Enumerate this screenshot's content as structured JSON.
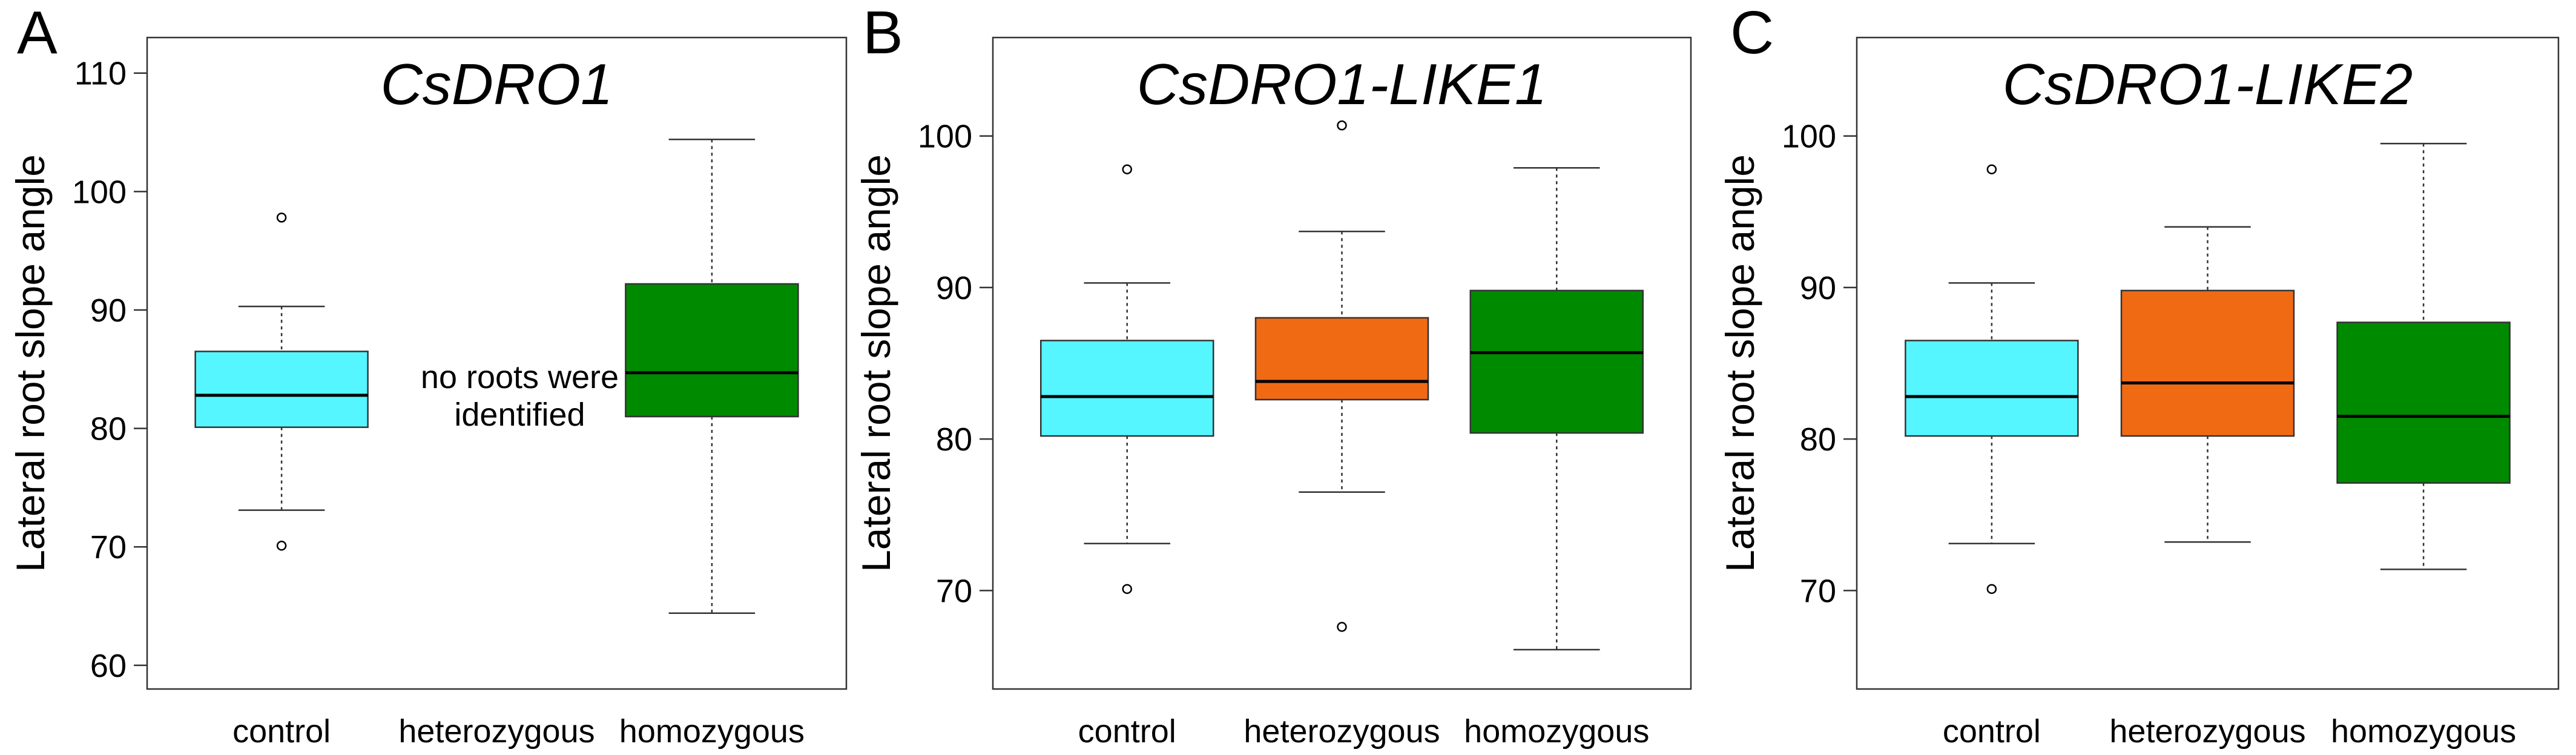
{
  "chart_data": [
    {
      "type": "box",
      "panel_label": "A",
      "title": "CsDRO1",
      "ylabel": "Lateral root slope angle",
      "xlabel": "",
      "ylim": [
        58,
        113
      ],
      "yticks": [
        60,
        70,
        80,
        90,
        100,
        110
      ],
      "grid": false,
      "categories": [
        "control",
        "heterozygous",
        "homozygous"
      ],
      "colors": [
        "#55f6ff",
        null,
        "#008a00"
      ],
      "boxes": [
        {
          "min": 73.1,
          "q1": 80.1,
          "median": 82.8,
          "q3": 86.5,
          "max": 90.3,
          "outliers": [
            97.8,
            70.1
          ]
        },
        null,
        {
          "min": 64.4,
          "q1": 81.0,
          "median": 84.7,
          "q3": 92.2,
          "max": 104.4,
          "outliers": []
        }
      ],
      "annotations": [
        {
          "category": "heterozygous",
          "lines": [
            "no roots were",
            "identified"
          ]
        }
      ]
    },
    {
      "type": "box",
      "panel_label": "B",
      "title": "CsDRO1-LIKE1",
      "ylabel": "Lateral root slope angle",
      "xlabel": "",
      "ylim": [
        63.5,
        106.5
      ],
      "yticks": [
        70,
        80,
        90,
        100
      ],
      "grid": false,
      "categories": [
        "control",
        "heterozygous",
        "homozygous"
      ],
      "colors": [
        "#55f6ff",
        "#f06a14",
        "#008a00"
      ],
      "boxes": [
        {
          "min": 73.1,
          "q1": 80.2,
          "median": 82.8,
          "q3": 86.5,
          "max": 90.3,
          "outliers": [
            97.8,
            70.1
          ]
        },
        {
          "min": 76.5,
          "q1": 82.6,
          "median": 83.8,
          "q3": 88.0,
          "max": 93.7,
          "outliers": [
            100.7,
            67.6
          ]
        },
        {
          "min": 66.1,
          "q1": 80.4,
          "median": 85.7,
          "q3": 89.8,
          "max": 97.9,
          "outliers": []
        }
      ],
      "annotations": []
    },
    {
      "type": "box",
      "panel_label": "C",
      "title": "CsDRO1-LIKE2",
      "ylabel": "Lateral root slope angle",
      "xlabel": "",
      "ylim": [
        63.5,
        106.5
      ],
      "yticks": [
        70,
        80,
        90,
        100
      ],
      "grid": false,
      "categories": [
        "control",
        "heterozygous",
        "homozygous"
      ],
      "colors": [
        "#55f6ff",
        "#f06a14",
        "#008a00"
      ],
      "boxes": [
        {
          "min": 73.1,
          "q1": 80.2,
          "median": 82.8,
          "q3": 86.5,
          "max": 90.3,
          "outliers": [
            97.8,
            70.1
          ]
        },
        {
          "min": 73.2,
          "q1": 80.2,
          "median": 83.7,
          "q3": 89.8,
          "max": 94.0,
          "outliers": []
        },
        {
          "min": 71.4,
          "q1": 77.1,
          "median": 81.5,
          "q3": 87.7,
          "max": 99.5,
          "outliers": []
        }
      ],
      "annotations": []
    }
  ]
}
